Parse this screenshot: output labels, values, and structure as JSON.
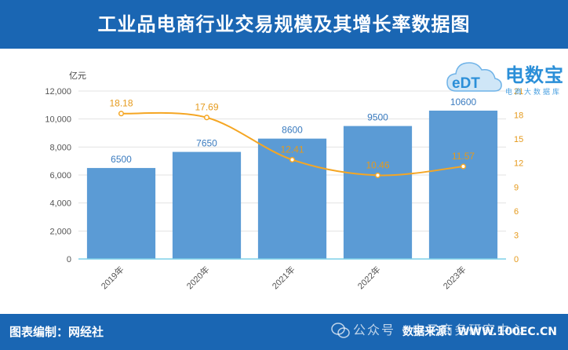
{
  "header": {
    "title": "工业品电商行业交易规模及其增长率数据图"
  },
  "logo": {
    "name": "电数宝",
    "sub": "电商大数据库",
    "mark": "eDT"
  },
  "footer": {
    "left": "图表编制：网经社",
    "right": "数据来源：WWW.100EC.CN",
    "watermark": "公众号 · 电子商务研究中心"
  },
  "colors": {
    "bar": "#5b9bd5",
    "line": "#f5a623",
    "header": "#1a66b3"
  },
  "chart_data": {
    "type": "bar",
    "categories": [
      "2019年",
      "2020年",
      "2021年",
      "2022年",
      "2023年"
    ],
    "series": [
      {
        "values": [
          6500,
          7650,
          8600,
          9500,
          10600
        ],
        "axis": "left",
        "kind": "bar"
      },
      {
        "values": [
          18.18,
          17.69,
          12.41,
          10.46,
          11.57
        ],
        "axis": "right",
        "kind": "line"
      }
    ],
    "ylabel": "亿元",
    "ylim": [
      0,
      12000
    ],
    "yticks": [
      "0",
      "2,000",
      "4,000",
      "6,000",
      "8,000",
      "10,000",
      "12,000"
    ],
    "y2lim": [
      0,
      21
    ],
    "y2ticks": [
      "0",
      "3",
      "6",
      "9",
      "12",
      "15",
      "18",
      "21"
    ],
    "bar_labels": [
      "6500",
      "7650",
      "8600",
      "9500",
      "10600"
    ],
    "line_labels": [
      "18.18",
      "17.69",
      "12.41",
      "10.46",
      "11.57"
    ],
    "grid": true
  }
}
